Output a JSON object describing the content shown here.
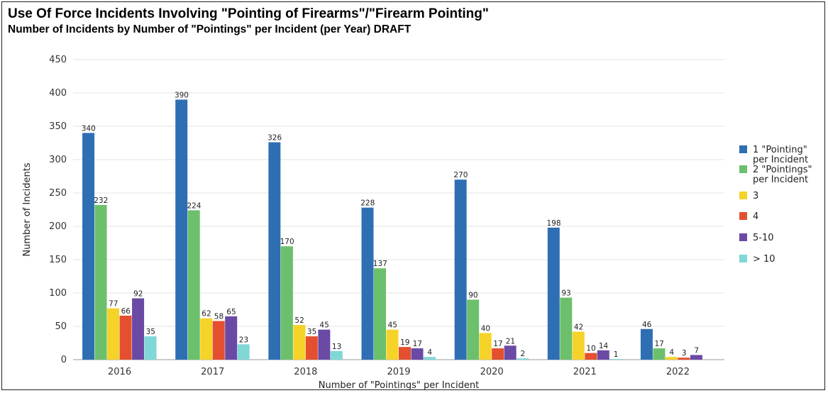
{
  "chart_data": {
    "type": "bar",
    "title": "Use Of Force Incidents Involving \"Pointing of Firearms\"/\"Firearm Pointing\"",
    "subtitle": "Number of Incidents by Number of \"Pointings\" per Incident (per Year) DRAFT",
    "xlabel": "Number of \"Pointings\" per Incident",
    "ylabel": "Number of Incidents",
    "categories": [
      "2016",
      "2017",
      "2018",
      "2019",
      "2020",
      "2021",
      "2022"
    ],
    "ylim": [
      0,
      450
    ],
    "yticks": [
      0,
      50,
      100,
      150,
      200,
      250,
      300,
      350,
      400,
      450
    ],
    "grid": true,
    "legend_position": "right",
    "series": [
      {
        "name": "1 \"Pointing\" per Incident",
        "legend_lines": [
          "1 \"Pointing\"",
          "per Incident"
        ],
        "color": "#2e6fb4",
        "values": [
          340,
          390,
          326,
          228,
          270,
          198,
          46
        ]
      },
      {
        "name": "2 \"Pointings\" per Incident",
        "legend_lines": [
          "2 \"Pointings\"",
          "per Incident"
        ],
        "color": "#6cc06c",
        "values": [
          232,
          224,
          170,
          137,
          90,
          93,
          17
        ]
      },
      {
        "name": "3",
        "legend_lines": [
          "3"
        ],
        "color": "#f5d328",
        "values": [
          77,
          62,
          52,
          45,
          40,
          42,
          4
        ]
      },
      {
        "name": "4",
        "legend_lines": [
          "4"
        ],
        "color": "#e4502f",
        "values": [
          66,
          58,
          35,
          19,
          17,
          10,
          3
        ]
      },
      {
        "name": "5-10",
        "legend_lines": [
          "5-10"
        ],
        "color": "#6a4aa5",
        "values": [
          92,
          65,
          45,
          17,
          21,
          14,
          7
        ]
      },
      {
        "name": "> 10",
        "legend_lines": [
          "> 10"
        ],
        "color": "#7fd8d6",
        "values": [
          35,
          23,
          13,
          4,
          2,
          1,
          0
        ]
      }
    ],
    "data_labels": [
      [
        "340",
        "390",
        "326",
        "228",
        "270",
        "198",
        "46"
      ],
      [
        "232",
        "224",
        "170",
        "137",
        "90",
        "93",
        "17"
      ],
      [
        "77",
        "62",
        "52",
        "45",
        "40",
        "42",
        "4"
      ],
      [
        "66",
        "58",
        "35",
        "19",
        "17",
        "10",
        "3"
      ],
      [
        "92",
        "65",
        "45",
        "17",
        "21",
        "14",
        "7"
      ],
      [
        "35",
        "23",
        "13",
        "4",
        "2",
        "1",
        ""
      ]
    ]
  }
}
